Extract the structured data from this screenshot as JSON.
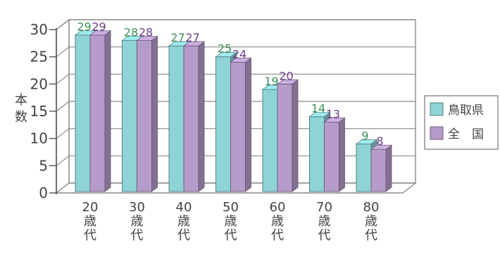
{
  "chart_data": {
    "type": "bar",
    "ylabel": "本数",
    "ylim": [
      0,
      30
    ],
    "yticks": [
      0,
      5,
      10,
      15,
      20,
      25,
      30
    ],
    "categories": [
      "20歳代",
      "30歳代",
      "40歳代",
      "50歳代",
      "60歳代",
      "70歳代",
      "80歳代"
    ],
    "series": [
      {
        "name": "鳥取県",
        "color": "#8ed3d6",
        "label_color": "#3d8f55",
        "values": [
          29,
          28,
          27,
          25,
          19,
          14,
          9
        ]
      },
      {
        "name": "全　国",
        "color": "#b69ccb",
        "label_color": "#6a3f86",
        "values": [
          29,
          28,
          27,
          24,
          20,
          13,
          8
        ]
      }
    ],
    "legend_position": "right",
    "grid": true,
    "three_d": true
  }
}
